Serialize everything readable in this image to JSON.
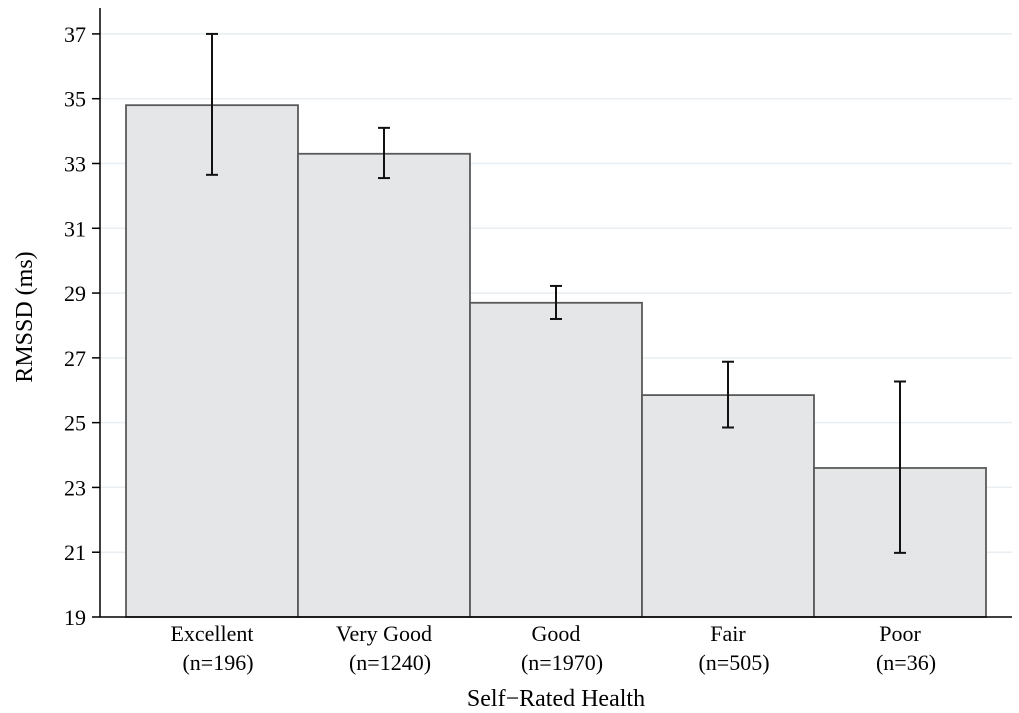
{
  "chart_data": {
    "type": "bar",
    "xlabel": "Self−Rated Health",
    "ylabel": "RMSSD (ms)",
    "ylim": [
      19,
      37.8
    ],
    "yticks": [
      19,
      21,
      23,
      25,
      27,
      29,
      31,
      33,
      35,
      37
    ],
    "grid": "horizontal",
    "categories": [
      {
        "name": "Excellent",
        "n": "(n=196)"
      },
      {
        "name": "Very Good",
        "n": "(n=1240)"
      },
      {
        "name": "Good",
        "n": "(n=1970)"
      },
      {
        "name": "Fair",
        "n": "(n=505)"
      },
      {
        "name": "Poor",
        "n": "(n=36)"
      }
    ],
    "values": [
      34.8,
      33.3,
      28.7,
      25.85,
      23.6
    ],
    "error_low": [
      32.65,
      32.55,
      28.2,
      24.85,
      20.98
    ],
    "error_high": [
      37.0,
      34.1,
      29.22,
      26.88,
      26.27
    ],
    "colors": {
      "bar_fill": "#e5e6e8",
      "bar_stroke": "#5a5a5a",
      "grid": "#e8eef1",
      "error_bar": "#111111"
    }
  }
}
